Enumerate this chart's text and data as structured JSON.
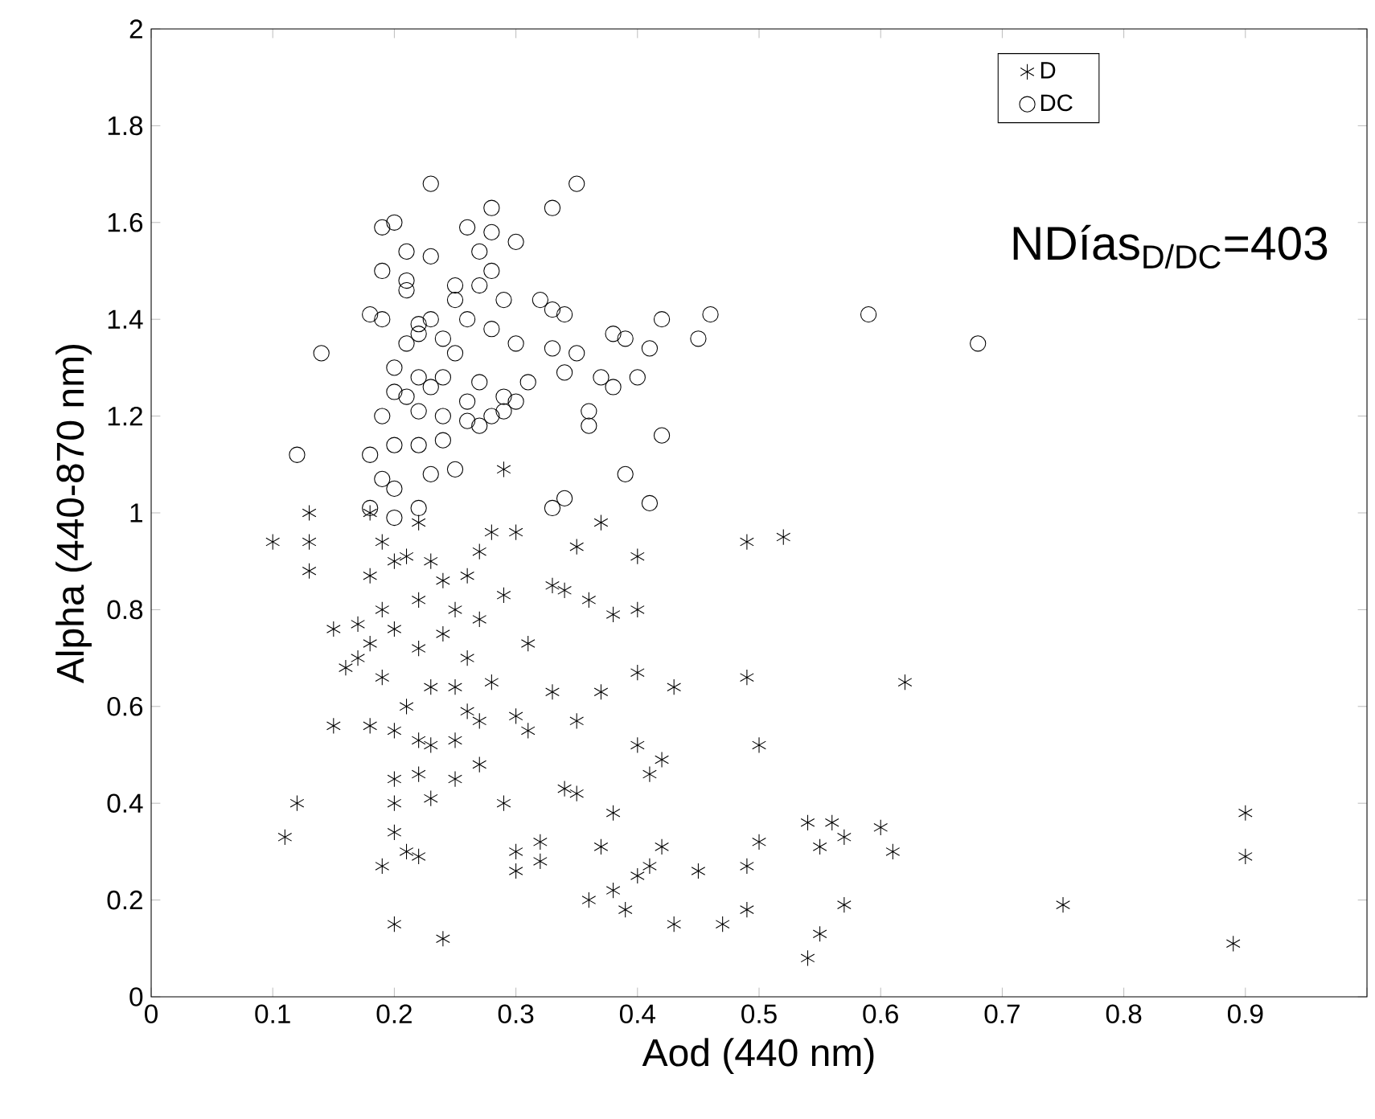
{
  "chart_data": {
    "type": "scatter",
    "xlabel": "Aod (440 nm)",
    "ylabel": "Alpha (440-870 nm)",
    "xlim": [
      0,
      1
    ],
    "ylim": [
      0,
      2
    ],
    "xticks": [
      0,
      0.1,
      0.2,
      0.3,
      0.4,
      0.5,
      0.6,
      0.7,
      0.8,
      0.9,
      {
        "value": 1,
        "label": null
      }
    ],
    "yticks": [
      0,
      0.2,
      0.4,
      0.6,
      0.8,
      1,
      1.2,
      1.4,
      1.6,
      1.8,
      2
    ],
    "grid": false,
    "legend": "top right",
    "annotations": [
      "NDías$_{D/DC}$=403"
    ],
    "series": [
      {
        "name": "D",
        "color": "#000000",
        "marker": "cross",
        "x": [
          0.1,
          0.11,
          0.12,
          0.13,
          0.13,
          0.13,
          0.15,
          0.15,
          0.16,
          0.17,
          0.17,
          0.18,
          0.18,
          0.18,
          0.18,
          0.19,
          0.19,
          0.19,
          0.19,
          0.2,
          0.2,
          0.2,
          0.2,
          0.2,
          0.2,
          0.2,
          0.21,
          0.21,
          0.21,
          0.22,
          0.22,
          0.22,
          0.22,
          0.22,
          0.22,
          0.23,
          0.23,
          0.23,
          0.23,
          0.24,
          0.24,
          0.24,
          0.25,
          0.25,
          0.25,
          0.25,
          0.26,
          0.26,
          0.26,
          0.27,
          0.27,
          0.27,
          0.27,
          0.28,
          0.28,
          0.29,
          0.29,
          0.29,
          0.3,
          0.3,
          0.3,
          0.3,
          0.31,
          0.31,
          0.32,
          0.32,
          0.33,
          0.33,
          0.34,
          0.34,
          0.35,
          0.35,
          0.35,
          0.36,
          0.36,
          0.37,
          0.37,
          0.37,
          0.38,
          0.38,
          0.38,
          0.39,
          0.4,
          0.4,
          0.4,
          0.4,
          0.4,
          0.41,
          0.41,
          0.42,
          0.42,
          0.43,
          0.43,
          0.45,
          0.47,
          0.49,
          0.49,
          0.49,
          0.49,
          0.5,
          0.5,
          0.52,
          0.54,
          0.54,
          0.55,
          0.55,
          0.56,
          0.57,
          0.57,
          0.6,
          0.61,
          0.62,
          0.75,
          0.89,
          0.9,
          0.9
        ],
        "values": [
          0.94,
          0.33,
          0.4,
          1.0,
          0.94,
          0.88,
          0.76,
          0.56,
          0.68,
          0.7,
          0.77,
          1.0,
          0.87,
          0.73,
          0.56,
          0.94,
          0.8,
          0.66,
          0.27,
          0.9,
          0.76,
          0.55,
          0.45,
          0.4,
          0.34,
          0.15,
          0.91,
          0.6,
          0.3,
          0.98,
          0.82,
          0.72,
          0.53,
          0.46,
          0.29,
          0.9,
          0.64,
          0.52,
          0.41,
          0.86,
          0.75,
          0.12,
          0.8,
          0.64,
          0.53,
          0.45,
          0.87,
          0.7,
          0.59,
          0.92,
          0.78,
          0.57,
          0.48,
          0.96,
          0.65,
          1.09,
          0.83,
          0.4,
          0.96,
          0.58,
          0.3,
          0.26,
          0.73,
          0.55,
          0.32,
          0.28,
          0.85,
          0.63,
          0.84,
          0.43,
          0.93,
          0.57,
          0.42,
          0.82,
          0.2,
          0.98,
          0.63,
          0.31,
          0.79,
          0.38,
          0.22,
          0.18,
          0.91,
          0.8,
          0.67,
          0.52,
          0.25,
          0.46,
          0.27,
          0.49,
          0.31,
          0.64,
          0.15,
          0.26,
          0.15,
          0.94,
          0.66,
          0.27,
          0.18,
          0.52,
          0.32,
          0.95,
          0.36,
          0.08,
          0.31,
          0.13,
          0.36,
          0.33,
          0.19,
          0.35,
          0.3,
          0.65,
          0.19,
          0.11,
          0.38,
          0.29
        ]
      },
      {
        "name": "DC",
        "color": "#000000",
        "marker": "circle",
        "x": [
          0.12,
          0.14,
          0.18,
          0.18,
          0.18,
          0.19,
          0.19,
          0.19,
          0.19,
          0.19,
          0.2,
          0.2,
          0.2,
          0.2,
          0.2,
          0.2,
          0.21,
          0.21,
          0.21,
          0.21,
          0.21,
          0.22,
          0.22,
          0.22,
          0.22,
          0.22,
          0.22,
          0.23,
          0.23,
          0.23,
          0.23,
          0.23,
          0.24,
          0.24,
          0.24,
          0.24,
          0.25,
          0.25,
          0.25,
          0.25,
          0.26,
          0.26,
          0.26,
          0.26,
          0.27,
          0.27,
          0.27,
          0.27,
          0.28,
          0.28,
          0.28,
          0.28,
          0.28,
          0.29,
          0.29,
          0.29,
          0.3,
          0.3,
          0.3,
          0.31,
          0.32,
          0.33,
          0.33,
          0.33,
          0.33,
          0.34,
          0.34,
          0.34,
          0.35,
          0.35,
          0.36,
          0.36,
          0.37,
          0.38,
          0.38,
          0.39,
          0.39,
          0.4,
          0.41,
          0.41,
          0.42,
          0.42,
          0.45,
          0.46,
          0.59,
          0.68
        ],
        "values": [
          1.12,
          1.33,
          1.41,
          1.12,
          1.01,
          1.59,
          1.5,
          1.4,
          1.07,
          1.2,
          1.6,
          1.3,
          1.25,
          1.14,
          1.05,
          0.99,
          1.54,
          1.48,
          1.46,
          1.24,
          1.35,
          1.39,
          1.37,
          1.28,
          1.21,
          1.14,
          1.01,
          1.53,
          1.4,
          1.26,
          1.08,
          1.68,
          1.36,
          1.28,
          1.2,
          1.15,
          1.47,
          1.44,
          1.33,
          1.09,
          1.59,
          1.4,
          1.23,
          1.19,
          1.54,
          1.47,
          1.27,
          1.18,
          1.63,
          1.58,
          1.5,
          1.38,
          1.2,
          1.44,
          1.24,
          1.21,
          1.56,
          1.35,
          1.23,
          1.27,
          1.44,
          1.63,
          1.42,
          1.34,
          1.01,
          1.41,
          1.29,
          1.03,
          1.68,
          1.33,
          1.21,
          1.18,
          1.28,
          1.37,
          1.26,
          1.08,
          1.36,
          1.28,
          1.34,
          1.02,
          1.4,
          1.16,
          1.36,
          1.41,
          1.41,
          1.35
        ]
      }
    ]
  }
}
